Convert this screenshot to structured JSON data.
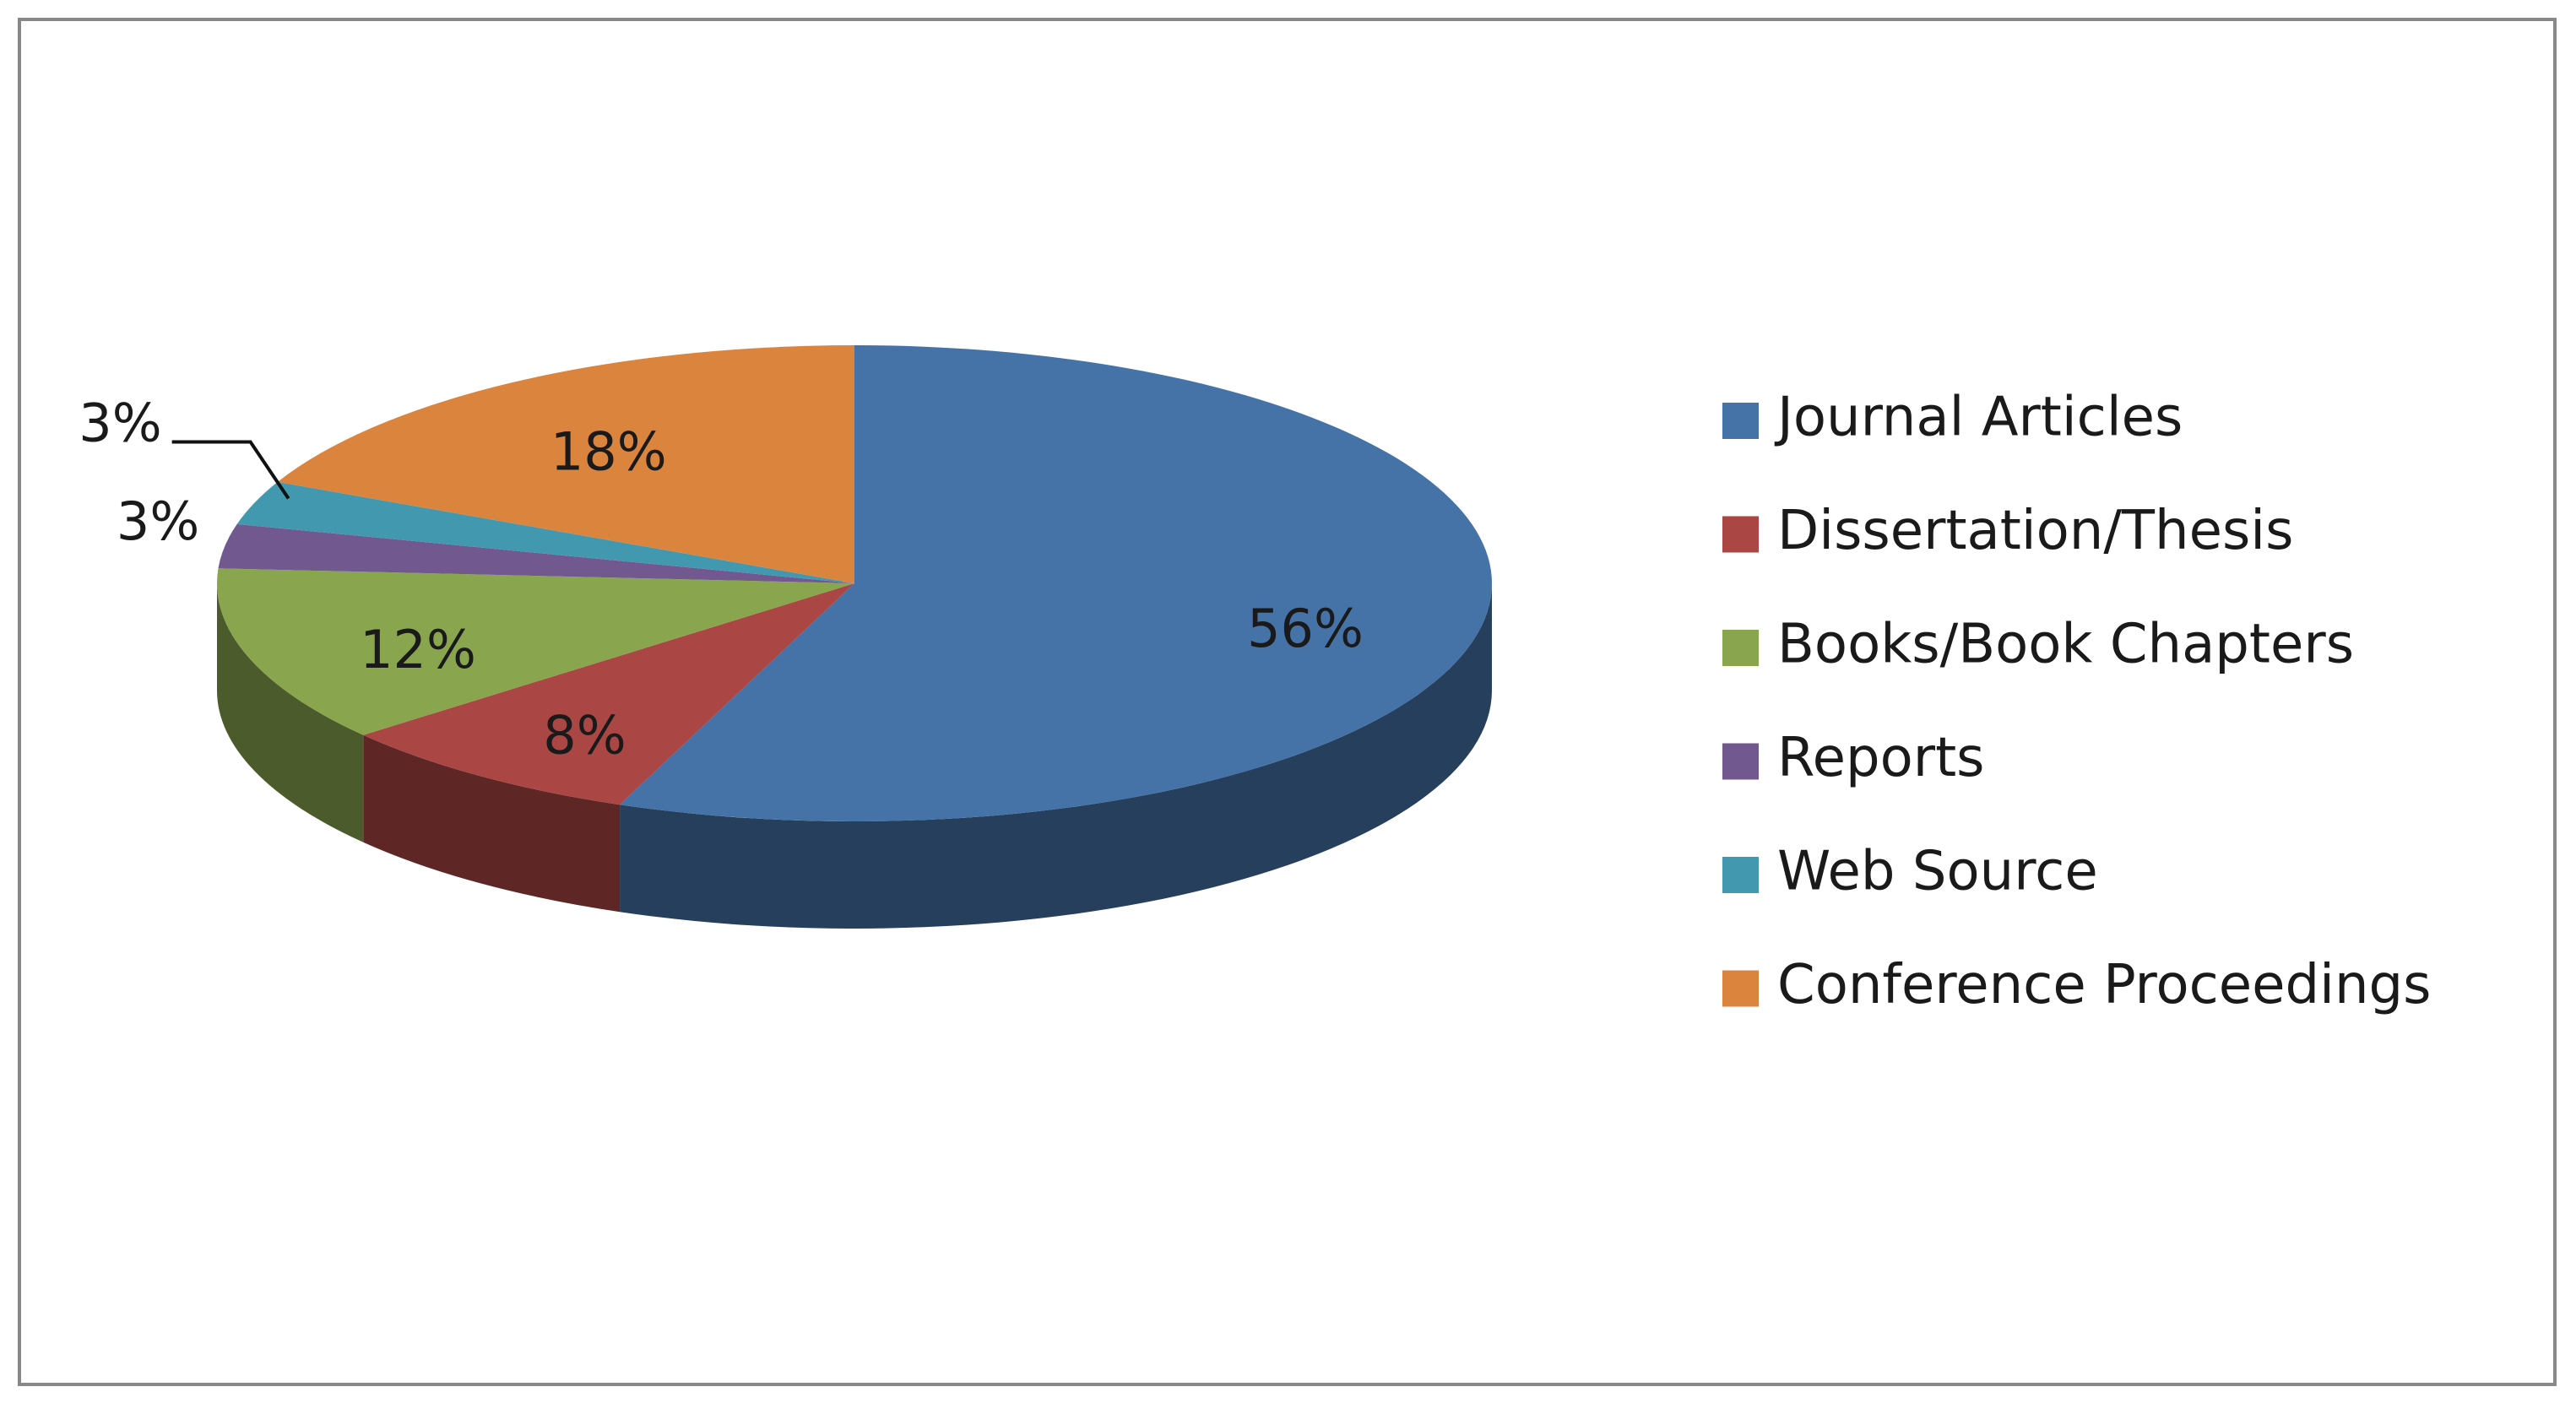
{
  "chart_data": {
    "type": "pie",
    "categories": [
      "Journal Articles",
      "Dissertation/Thesis",
      "Books/Book Chapters",
      "Reports",
      "Web Source",
      "Conference Proceedings"
    ],
    "values": [
      56,
      8,
      12,
      3,
      3,
      18
    ],
    "value_labels": [
      "56%",
      "8%",
      "12%",
      "3%",
      "3%",
      "18%"
    ],
    "colors": [
      "#4572a7",
      "#aa4643",
      "#89a54e",
      "#71588f",
      "#4198af",
      "#db843d"
    ],
    "legend": "right"
  }
}
